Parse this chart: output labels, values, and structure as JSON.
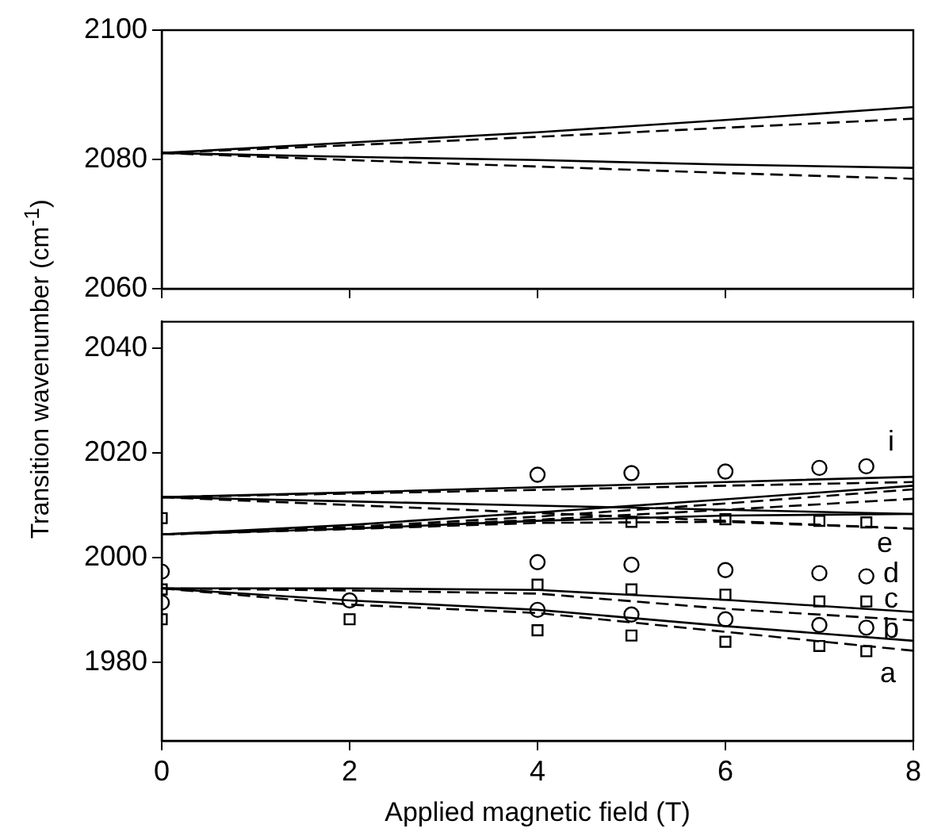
{
  "chart_data": [
    {
      "type": "line",
      "xlim": [
        0,
        8
      ],
      "xticks": [
        0,
        2,
        4,
        6,
        8
      ],
      "ylim": [
        2060,
        2100
      ],
      "yticks": [
        2060,
        2080,
        2100
      ],
      "tick_labels": "y",
      "grid": false,
      "legend": false,
      "series": [
        {
          "color": "#000000",
          "line_style": "solid",
          "marker": "none",
          "x": [
            0,
            2,
            4,
            6,
            8
          ],
          "values": [
            2081,
            2082.6,
            2084.2,
            2086.1,
            2088.1
          ]
        },
        {
          "color": "#000000",
          "line_style": "dashed",
          "marker": "none",
          "x": [
            0,
            2,
            4,
            6,
            8
          ],
          "values": [
            2081,
            2082.2,
            2083.5,
            2084.9,
            2086.3
          ]
        },
        {
          "color": "#000000",
          "line_style": "solid",
          "marker": "none",
          "x": [
            0,
            2,
            4,
            6,
            8
          ],
          "values": [
            2081,
            2080.4,
            2079.9,
            2079.2,
            2078.7
          ]
        },
        {
          "color": "#000000",
          "line_style": "dashed",
          "marker": "none",
          "x": [
            0,
            2,
            4,
            6,
            8
          ],
          "values": [
            2081,
            2079.9,
            2078.9,
            2077.9,
            2077
          ]
        }
      ]
    },
    {
      "type": "line",
      "xlabel": "Applied magnetic field (T)",
      "ylabel": "Transition wavenumber (cm$^{-1}$)",
      "xlim": [
        0,
        8
      ],
      "xticks": [
        0,
        2,
        4,
        6,
        8
      ],
      "ylim": [
        1965,
        2045
      ],
      "yticks": [
        1980,
        2000,
        2020,
        2040
      ],
      "grid": false,
      "legend": false,
      "series": [
        {
          "color": "#000000",
          "line_style": "solid",
          "marker": "none",
          "x": [
            0,
            2,
            4,
            6,
            8
          ],
          "values": [
            2011.5,
            2012.4,
            2013.4,
            2014.4,
            2015.4
          ]
        },
        {
          "color": "#000000",
          "line_style": "dashed",
          "marker": "none",
          "x": [
            0,
            2,
            4,
            6,
            8
          ],
          "values": [
            2011.5,
            2012.2,
            2012.9,
            2013.7,
            2014.4
          ]
        },
        {
          "color": "#000000",
          "line_style": "solid",
          "marker": "none",
          "x": [
            0,
            2,
            4,
            6,
            8
          ],
          "values": [
            2011.5,
            2010.7,
            2009.9,
            2009.1,
            2008.3
          ]
        },
        {
          "color": "#000000",
          "line_style": "dashed",
          "marker": "none",
          "x": [
            0,
            2,
            4,
            6,
            8
          ],
          "values": [
            2011.5,
            2010,
            2008.5,
            2007,
            2005.5
          ]
        },
        {
          "color": "#000000",
          "line_style": "solid",
          "marker": "none",
          "x": [
            0,
            2,
            4,
            6,
            8
          ],
          "values": [
            2004.4,
            2006.2,
            2008.6,
            2011.1,
            2013.7
          ]
        },
        {
          "color": "#000000",
          "line_style": "dashed",
          "marker": "none",
          "x": [
            0,
            2,
            4,
            6,
            8
          ],
          "values": [
            2004.4,
            2005.8,
            2007.8,
            2010.3,
            2013
          ]
        },
        {
          "color": "#000000",
          "line_style": "dashed",
          "marker": "none",
          "x": [
            0,
            2,
            4,
            6,
            8
          ],
          "values": [
            2004.4,
            2005.6,
            2007.2,
            2009.1,
            2011.2
          ]
        },
        {
          "color": "#000000",
          "line_style": "solid",
          "marker": "none",
          "x": [
            0,
            2,
            4,
            6,
            8
          ],
          "values": [
            2004.4,
            2005.5,
            2007,
            2008,
            2008.3
          ]
        },
        {
          "color": "#000000",
          "line_style": "dashed",
          "marker": "none",
          "x": [
            0,
            2,
            4,
            6,
            8
          ],
          "values": [
            2004.4,
            2005.4,
            2006.6,
            2006.8,
            2005.5
          ]
        },
        {
          "color": "#000000",
          "line_style": "solid",
          "marker": "none",
          "x": [
            0,
            2,
            4,
            6,
            8
          ],
          "values": [
            1994.1,
            1994.1,
            1993.8,
            1991.9,
            1989.6
          ]
        },
        {
          "color": "#000000",
          "line_style": "dashed",
          "marker": "none",
          "x": [
            0,
            2,
            4,
            6,
            8
          ],
          "values": [
            1994.1,
            1993.7,
            1993.1,
            1990.2,
            1988
          ]
        },
        {
          "color": "#000000",
          "line_style": "solid",
          "marker": "none",
          "x": [
            0,
            2,
            4,
            6,
            8
          ],
          "values": [
            1994.1,
            1991.8,
            1990,
            1986.9,
            1984.1
          ]
        },
        {
          "color": "#000000",
          "line_style": "dashed",
          "marker": "none",
          "x": [
            0,
            2,
            4,
            6,
            8
          ],
          "values": [
            1994.1,
            1991,
            1989.4,
            1985.8,
            1982.2
          ]
        },
        {
          "type": "scatter",
          "color": "#000000",
          "marker": "circle",
          "x": [
            0,
            0,
            2,
            4,
            4,
            4,
            5,
            5,
            5,
            6,
            6,
            6,
            7,
            7,
            7,
            7.5,
            7.5,
            7.5
          ],
          "values": [
            1997.3,
            1991.4,
            1991.8,
            2015.8,
            1999.1,
            1990,
            2016.1,
            1998.6,
            1989.1,
            2016.4,
            1997.6,
            1988.2,
            2017.1,
            1997,
            1987.1,
            2017.4,
            1996.4,
            1986.6
          ]
        },
        {
          "type": "scatter",
          "color": "#000000",
          "marker": "square",
          "x": [
            0,
            0,
            0,
            2,
            4,
            4,
            5,
            5,
            5,
            6,
            6,
            6,
            7,
            7,
            7,
            7.5,
            7.5,
            7.5
          ],
          "values": [
            2007.5,
            1993.9,
            1988.2,
            1988.2,
            1994.8,
            1986.1,
            2006.8,
            1993.9,
            1985.1,
            2007.3,
            1992.9,
            1983.9,
            2007,
            1991.6,
            1983.1,
            2006.7,
            1991.6,
            1982.1
          ]
        }
      ],
      "annotations": [
        "i",
        "e",
        "d",
        "c",
        "b",
        "a"
      ]
    }
  ]
}
